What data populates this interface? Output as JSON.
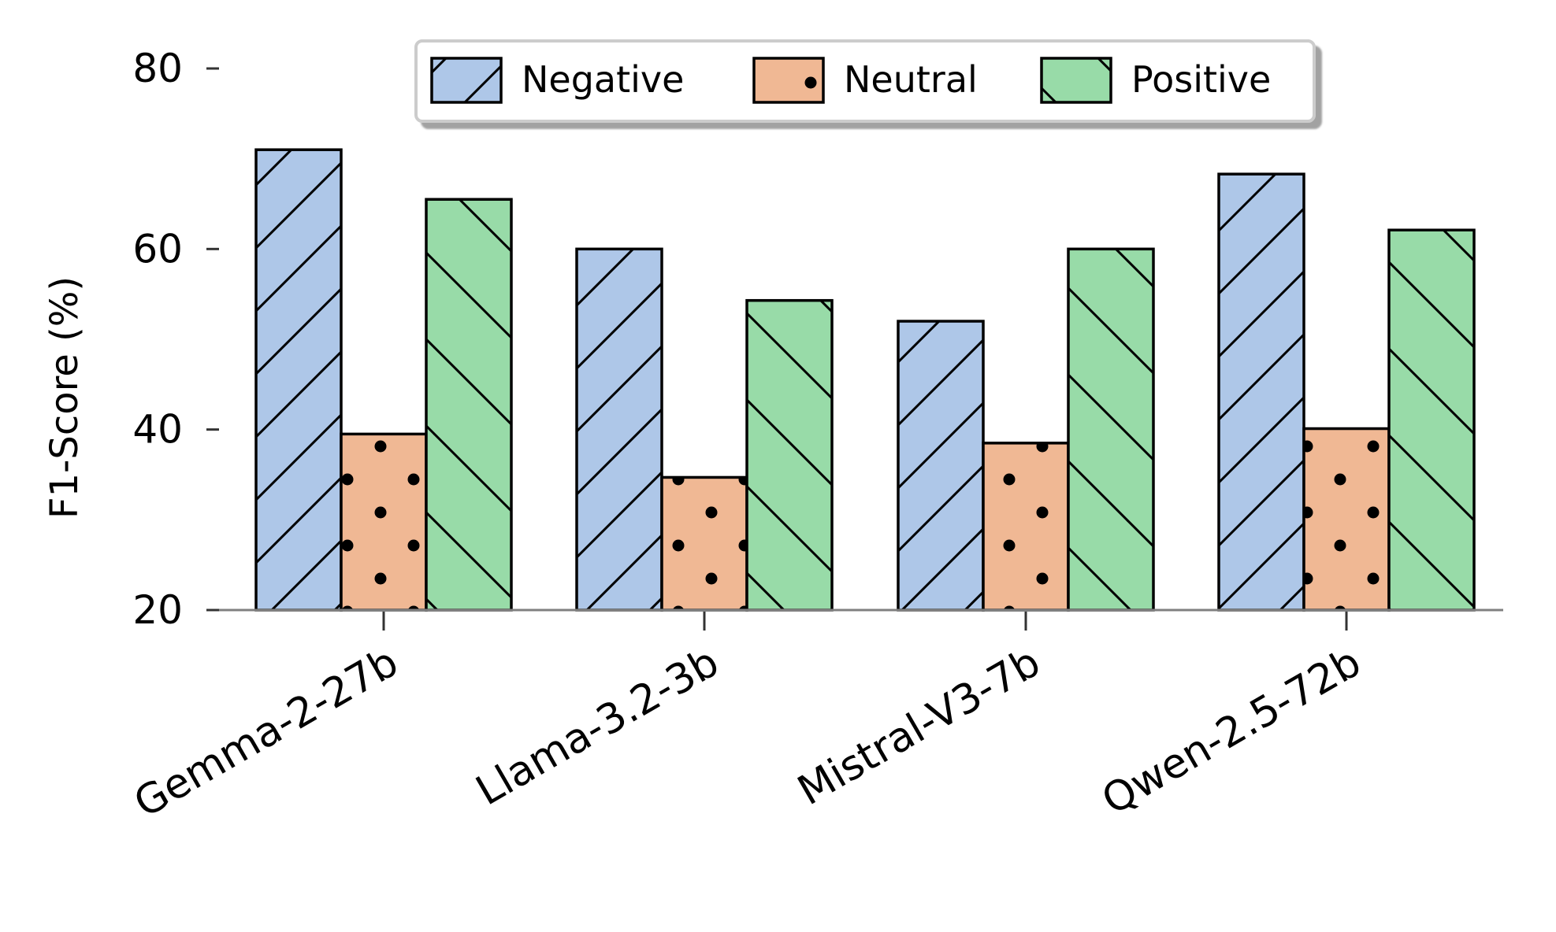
{
  "chart_data": {
    "type": "bar",
    "title": "",
    "xlabel": "",
    "ylabel": "F1-Score (%)",
    "ylim": [
      20,
      80
    ],
    "yticks": [
      "20",
      "40",
      "60",
      "80"
    ],
    "categories": [
      "Gemma-2-27b",
      "Llama-3.2-3b",
      "Mistral-V3-7b",
      "Qwen-2.5-72b"
    ],
    "series": [
      {
        "name": "Negative",
        "values": [
          71.0,
          60.0,
          52.0,
          68.3
        ],
        "color": "#aec7e8",
        "pattern": "forward-hatch"
      },
      {
        "name": "Neutral",
        "values": [
          39.5,
          34.7,
          38.5,
          40.1
        ],
        "color": "#f0b894",
        "pattern": "dots"
      },
      {
        "name": "Positive",
        "values": [
          65.5,
          54.3,
          60.0,
          62.1
        ],
        "color": "#98dba8",
        "pattern": "back-hatch"
      }
    ],
    "legend_position": "top-center",
    "grid": false
  }
}
